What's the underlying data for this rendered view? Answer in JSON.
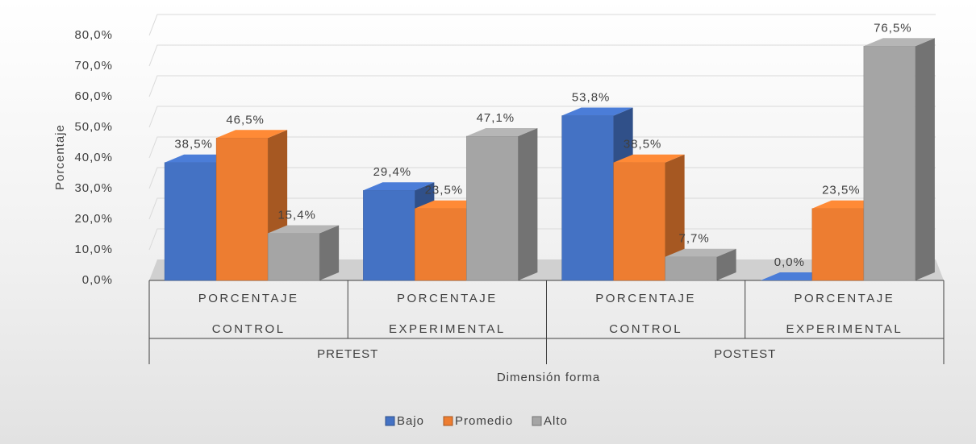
{
  "chart_data": {
    "type": "bar3d",
    "y_label": "Porcentaje",
    "x_label": "Dimensión forma",
    "groups": [
      "PRETEST",
      "POSTEST"
    ],
    "categories": [
      "PORCENTAJE CONTROL",
      "PORCENTAJE EXPERIMENTAL",
      "PORCENTAJE CONTROL",
      "PORCENTAJE EXPERIMENTAL"
    ],
    "series": [
      {
        "name": "Bajo",
        "color": "#4472c4",
        "values": [
          38.5,
          29.4,
          53.8,
          0.0
        ],
        "value_labels": [
          "38,5%",
          "29,4%",
          "53,8%",
          "0,0%"
        ]
      },
      {
        "name": "Promedio",
        "color": "#ed7d31",
        "values": [
          46.5,
          23.5,
          38.5,
          23.5
        ],
        "value_labels": [
          "46,5%",
          "23,5%",
          "38,5%",
          "23,5%"
        ]
      },
      {
        "name": "Alto",
        "color": "#a5a5a5",
        "values": [
          15.4,
          47.1,
          7.7,
          76.5
        ],
        "value_labels": [
          "15,4%",
          "47,1%",
          "7,7%",
          "76,5%"
        ]
      }
    ],
    "ylim": [
      0,
      80
    ],
    "yticks": [
      {
        "value": 0,
        "label": "0,0%"
      },
      {
        "value": 10,
        "label": "10,0%"
      },
      {
        "value": 20,
        "label": "20,0%"
      },
      {
        "value": 30,
        "label": "30,0%"
      },
      {
        "value": 40,
        "label": "40,0%"
      },
      {
        "value": 50,
        "label": "50,0%"
      },
      {
        "value": 60,
        "label": "60,0%"
      },
      {
        "value": 70,
        "label": "70,0%"
      },
      {
        "value": 80,
        "label": "80,0%"
      }
    ],
    "grid": true,
    "legend": "bottom"
  }
}
